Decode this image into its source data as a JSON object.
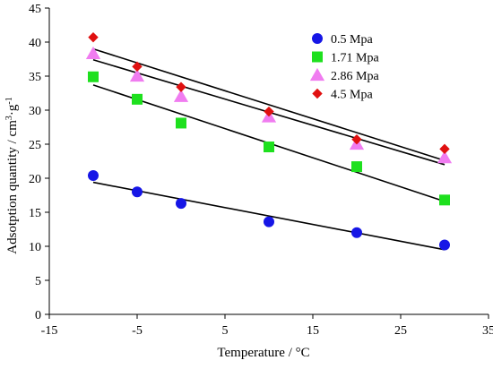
{
  "chart_data": {
    "type": "scatter",
    "title": "",
    "xlabel": "Temperature / °C",
    "ylabel_parts": {
      "base": "Adsotption quantity / cm",
      "sup1": "3",
      "mid": "·g",
      "sup2": "-1"
    },
    "xlim": [
      -15,
      35
    ],
    "ylim": [
      0,
      45
    ],
    "x_ticks": [
      -15,
      -5,
      5,
      15,
      25,
      35
    ],
    "x_tick_labels": [
      "-15",
      "-5",
      "5",
      "15",
      "25",
      "35"
    ],
    "y_ticks": [
      0,
      5,
      10,
      15,
      20,
      25,
      30,
      35,
      40,
      45
    ],
    "y_tick_labels": [
      "0",
      "5",
      "10",
      "15",
      "20",
      "25",
      "30",
      "35",
      "40",
      "45"
    ],
    "grid": false,
    "legend_position": "top-right",
    "series": [
      {
        "name": "0.5 Mpa",
        "marker": "circle",
        "color": "#1616e6",
        "x": [
          -10,
          -5,
          0,
          10,
          20,
          30
        ],
        "y": [
          20.4,
          18.0,
          16.3,
          13.6,
          12.0,
          10.2
        ],
        "trendline": [
          [
            -10,
            19.4
          ],
          [
            30,
            9.5
          ]
        ]
      },
      {
        "name": "1.71 Mpa",
        "marker": "square",
        "color": "#1ee01e",
        "x": [
          -10,
          -5,
          0,
          10,
          20,
          30
        ],
        "y": [
          34.9,
          31.6,
          28.1,
          24.6,
          21.7,
          16.8
        ],
        "trendline": [
          [
            -10,
            33.7
          ],
          [
            30,
            16.6
          ]
        ]
      },
      {
        "name": "2.86 Mpa",
        "marker": "triangle",
        "color": "#f07cf0",
        "x": [
          -10,
          -5,
          0,
          10,
          20,
          30
        ],
        "y": [
          38.3,
          35.0,
          32.0,
          29.0,
          25.0,
          23.0
        ],
        "trendline": [
          [
            -10,
            37.4
          ],
          [
            30,
            22.0
          ]
        ]
      },
      {
        "name": "4.5 Mpa",
        "marker": "diamond",
        "color": "#e01010",
        "x": [
          -10,
          -5,
          0,
          10,
          20,
          30
        ],
        "y": [
          40.7,
          36.4,
          33.4,
          29.8,
          25.7,
          24.3
        ],
        "trendline": [
          [
            -10,
            39.0
          ],
          [
            30,
            22.6
          ]
        ]
      }
    ]
  }
}
